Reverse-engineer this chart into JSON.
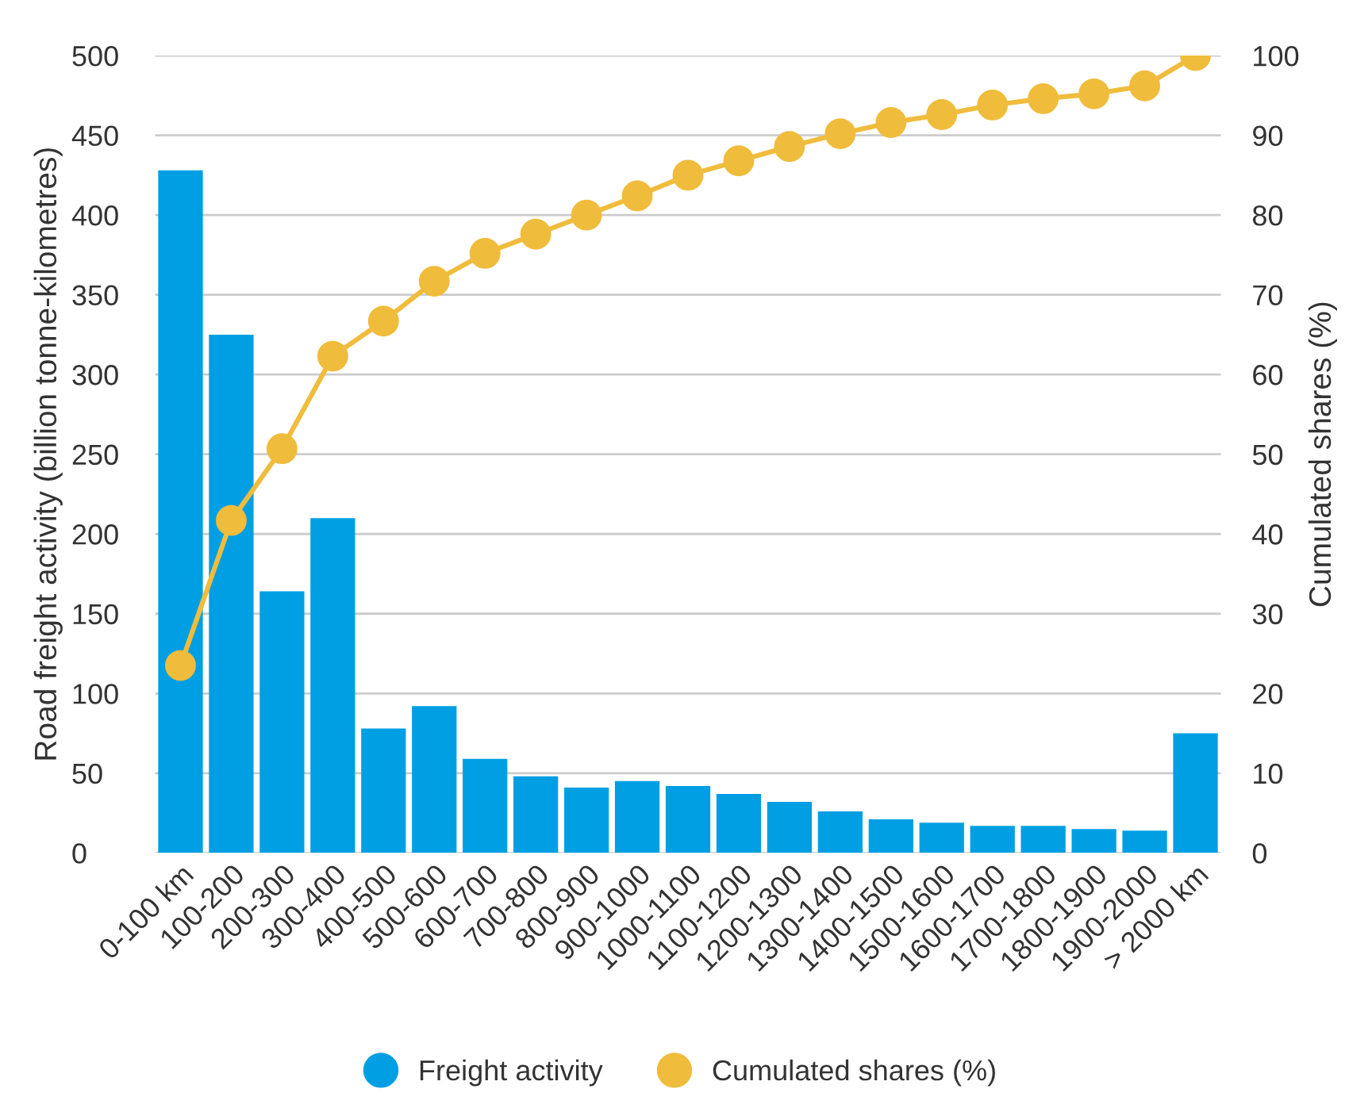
{
  "chart_data": {
    "type": "bar",
    "ylabel": "Road freight activity (billion tonne-kilometres)",
    "y2label": "Cumulated shares (%)",
    "categories": [
      "0-100 km",
      "100-200",
      "200-300",
      "300-400",
      "400-500",
      "500-600",
      "600-700",
      "700-800",
      "800-900",
      "900-1000",
      "1000-1100",
      "1100-1200",
      "1200-1300",
      "1300-1400",
      "1400-1500",
      "1500-1600",
      "1600-1700",
      "1700-1800",
      "1800-1900",
      "1900-2000",
      "> 2000 km"
    ],
    "series": [
      {
        "name": "Freight activity",
        "color": "#009fe3",
        "values": [
          428,
          325,
          164,
          210,
          78,
          92,
          59,
          48,
          41,
          45,
          42,
          37,
          32,
          26,
          21,
          19,
          17,
          17,
          15,
          14,
          75
        ]
      },
      {
        "name": "Cumulated shares (%)",
        "type": "line",
        "axis": "y2",
        "color": "#f0bc3c",
        "marker": "circle",
        "values": [
          23.5,
          41.7,
          50.7,
          62.3,
          66.7,
          71.7,
          75.2,
          77.6,
          80,
          82.4,
          85,
          86.8,
          88.6,
          90.2,
          91.6,
          92.6,
          93.8,
          94.6,
          95.2,
          96.2,
          100
        ]
      }
    ],
    "ylim": [
      0,
      500
    ],
    "yticks": [
      0,
      50,
      100,
      150,
      200,
      250,
      300,
      350,
      400,
      450,
      500
    ],
    "y2lim": [
      0,
      100
    ],
    "y2ticks": [
      0,
      10,
      20,
      30,
      40,
      50,
      60,
      70,
      80,
      90,
      100
    ],
    "grid": "y",
    "legend": "bottom"
  }
}
